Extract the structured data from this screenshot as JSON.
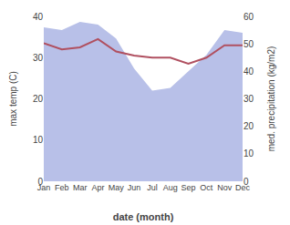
{
  "chart_data": {
    "type": "line",
    "categories": [
      "Jan",
      "Feb",
      "Mar",
      "Apr",
      "May",
      "Jun",
      "Jul",
      "Aug",
      "Sep",
      "Oct",
      "Nov",
      "Dec"
    ],
    "xlabel": "date (month)",
    "ylabel": "max temp (C)",
    "y2label": "med. precipitation (kg/m2)",
    "series": [
      {
        "type": "area",
        "color": "#b8c0e8",
        "axis": "y2",
        "values": [
          56,
          55,
          58,
          57,
          52,
          41,
          33,
          34,
          40,
          46,
          55,
          54
        ]
      },
      {
        "type": "line",
        "color": "#b05060",
        "values": [
          33.5,
          32.0,
          32.5,
          34.5,
          31.5,
          30.5,
          30.0,
          30.0,
          28.5,
          30.0,
          33.0,
          33.0
        ]
      }
    ],
    "ylim": [
      0,
      40
    ],
    "yticks": [
      0,
      10,
      20,
      30,
      40
    ],
    "y2lim": [
      0,
      60
    ],
    "y2ticks": [
      0,
      10,
      20,
      30,
      40,
      50,
      60
    ],
    "grid": false
  }
}
